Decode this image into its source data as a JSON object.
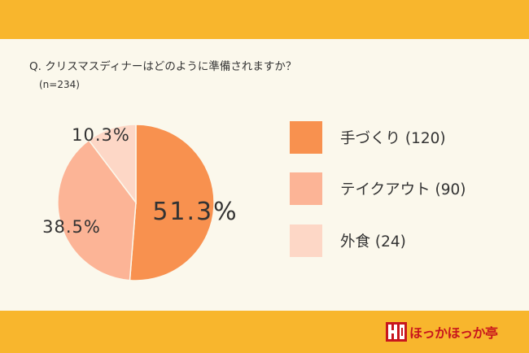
{
  "question": "Q. クリスマスディナーはどのように準備されますか？",
  "sample_size": "(n=234)",
  "brand": {
    "name": "ほっかほっか亭",
    "color": "#c8161d"
  },
  "chart_data": {
    "type": "pie",
    "title": "Q. クリスマスディナーはどのように準備されますか？",
    "subtitle": "(n=234)",
    "legend_position": "right",
    "slices": [
      {
        "label": "手づくり (120)",
        "value": 51.3,
        "count": 120,
        "percent_label": "51.3%",
        "color": "#f8914f"
      },
      {
        "label": "テイクアウト (90)",
        "value": 38.5,
        "count": 90,
        "percent_label": "38.5%",
        "color": "#fcb496"
      },
      {
        "label": "外食 (24)",
        "value": 10.3,
        "count": 24,
        "percent_label": "10.3%",
        "color": "#fdd7c6"
      }
    ]
  }
}
